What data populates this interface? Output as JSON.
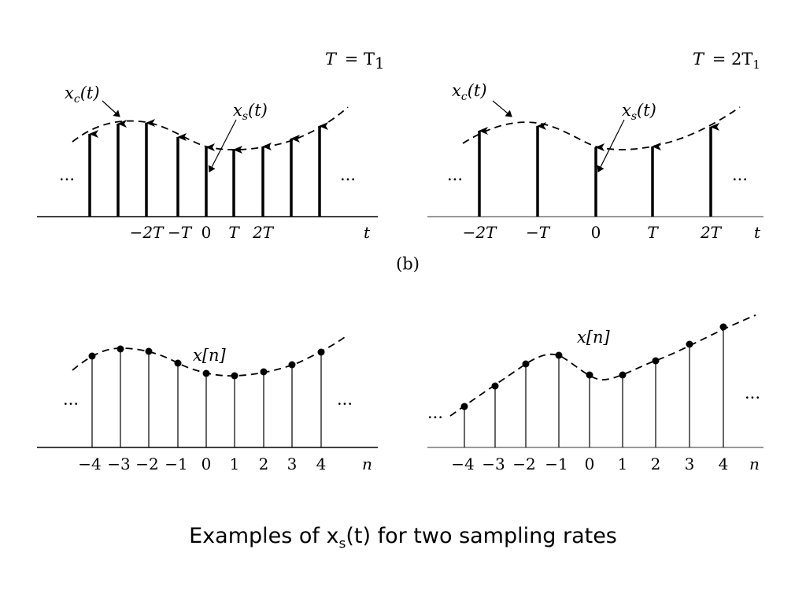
{
  "panels": [
    {
      "id": "top-left",
      "header_lhs": "T",
      "header_rhs": "= T",
      "header_sub": "1",
      "curve_label_main": "x",
      "curve_label_sub": "c",
      "curve_label_arg": "(t)",
      "samples_label_main": "x",
      "samples_label_sub": "s",
      "samples_label_arg": "(t)",
      "ellipsis_left": "···",
      "ellipsis_right": "···",
      "axis_var": "t",
      "ticks": [
        "−2T",
        "−T",
        "0",
        "T",
        "2T"
      ]
    },
    {
      "id": "top-right",
      "header_lhs": "T",
      "header_rhs": "= 2T",
      "header_sub": "1",
      "curve_label_main": "x",
      "curve_label_sub": "c",
      "curve_label_arg": "(t)",
      "samples_label_main": "x",
      "samples_label_sub": "s",
      "samples_label_arg": "(t)",
      "ellipsis_left": "···",
      "ellipsis_right": "···",
      "axis_var": "t",
      "ticks": [
        "−2T",
        "−T",
        "0",
        "T",
        "2T"
      ]
    },
    {
      "id": "bottom-left",
      "seq_label": "x[n]",
      "ellipsis_left": "···",
      "ellipsis_right": "···",
      "axis_var": "n",
      "ticks": [
        "−4",
        "−3",
        "−2",
        "−1",
        "0",
        "1",
        "2",
        "3",
        "4"
      ]
    },
    {
      "id": "bottom-right",
      "seq_label": "x[n]",
      "ellipsis_left": "···",
      "ellipsis_right": "···",
      "axis_var": "n",
      "ticks": [
        "−4",
        "−3",
        "−2",
        "−1",
        "0",
        "1",
        "2",
        "3",
        "4"
      ]
    }
  ],
  "subfigure_label": "(b)",
  "caption": {
    "pre": "Examples of x",
    "sub": "s",
    "post": "(t) for two sampling rates"
  }
}
